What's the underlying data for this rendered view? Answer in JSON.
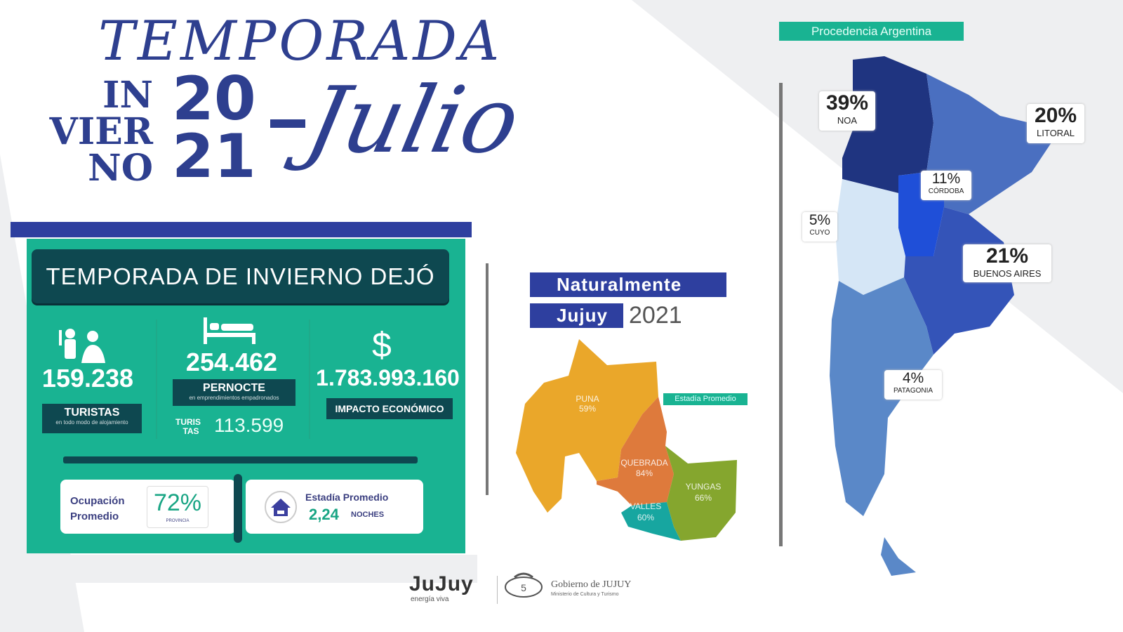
{
  "header": {
    "title": "TEMPORADA",
    "season_lines": [
      "IN",
      "VIER",
      "NO"
    ],
    "year_lines": [
      "20",
      "21"
    ],
    "month": "Julio"
  },
  "panel": {
    "heading": "TEMPORADA DE INVIERNO DEJÓ",
    "stats": [
      {
        "icon": "tourists-icon",
        "value": "159.238",
        "label": "TURISTAS",
        "sublabel": "en todo modo de alojamiento"
      },
      {
        "icon": "bed-icon",
        "value": "254.462",
        "label": "PERNOCTE",
        "sublabel": "en emprendimientos empadronados",
        "extra_label": [
          "TURIS",
          "TAS"
        ],
        "extra_value": "113.599"
      },
      {
        "icon": "dollar-icon",
        "icon_glyph": "$",
        "value": "1.783.993.160",
        "label": "IMPACTO ECONÓMICO"
      }
    ],
    "occupancy": {
      "label": [
        "Ocupación",
        "Promedio"
      ],
      "value": "72%",
      "sublabel": "PROVINCIA"
    },
    "stay": {
      "icon": "house-icon",
      "label": "Estadía Promedio",
      "value": "2,24",
      "unit": "NOCHES"
    }
  },
  "jujuy": {
    "title_lines": [
      "Naturalmente",
      "Jujuy"
    ],
    "year": "2021",
    "legend": "Estadía Promedio",
    "regions": [
      {
        "name": "PUNA",
        "value": "59%",
        "color": "#eaa72a"
      },
      {
        "name": "QUEBRADA",
        "value": "84%",
        "color": "#de7a3c"
      },
      {
        "name": "VALLES",
        "value": "60%",
        "color": "#17a6a0"
      },
      {
        "name": "YUNGAS",
        "value": "66%",
        "color": "#85a62e"
      }
    ]
  },
  "argentina": {
    "title": "Procedencia Argentina",
    "regions": [
      {
        "name": "NOA",
        "value": "39%",
        "color": "#1f3480"
      },
      {
        "name": "LITORAL",
        "value": "20%",
        "color": "#4a6fc0"
      },
      {
        "name": "CÓRDOBA",
        "value": "11%",
        "color": "#1f4fd8"
      },
      {
        "name": "CUYO",
        "value": "5%",
        "color": "#d5e6f6"
      },
      {
        "name": "BUENOS AIRES",
        "value": "21%",
        "color": "#3454b8"
      },
      {
        "name": "PATAGONIA",
        "value": "4%",
        "color": "#5a88c8"
      }
    ]
  },
  "footer": {
    "brand": "JuJuy",
    "brand_tagline": "energía viva",
    "gov": "Gobierno de JUJUY",
    "ministry": "Ministerio de Cultura y Turismo"
  },
  "colors": {
    "navy": "#2e3f8f",
    "teal": "#19b392",
    "dark_teal": "#0e4850"
  }
}
